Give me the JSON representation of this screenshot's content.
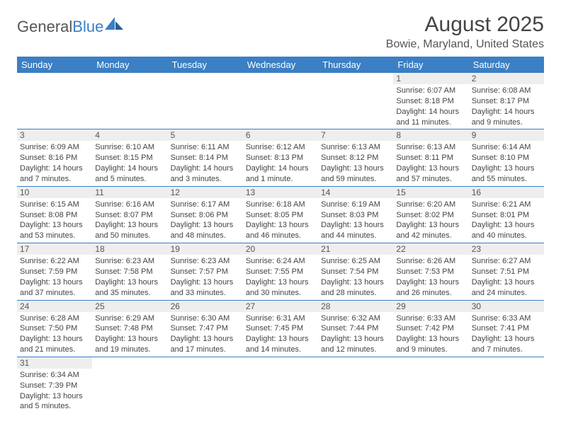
{
  "logo": {
    "text1": "General",
    "text2": "Blue"
  },
  "title": "August 2025",
  "location": "Bowie, Maryland, United States",
  "colors": {
    "header_bg": "#3b7fc4",
    "header_text": "#ffffff",
    "daynum_bg": "#eeeeee",
    "row_border": "#3b7fc4",
    "body_text": "#444444"
  },
  "weekdays": [
    "Sunday",
    "Monday",
    "Tuesday",
    "Wednesday",
    "Thursday",
    "Friday",
    "Saturday"
  ],
  "weeks": [
    [
      null,
      null,
      null,
      null,
      null,
      {
        "n": "1",
        "sr": "Sunrise: 6:07 AM",
        "ss": "Sunset: 8:18 PM",
        "dl": "Daylight: 14 hours and 11 minutes."
      },
      {
        "n": "2",
        "sr": "Sunrise: 6:08 AM",
        "ss": "Sunset: 8:17 PM",
        "dl": "Daylight: 14 hours and 9 minutes."
      }
    ],
    [
      {
        "n": "3",
        "sr": "Sunrise: 6:09 AM",
        "ss": "Sunset: 8:16 PM",
        "dl": "Daylight: 14 hours and 7 minutes."
      },
      {
        "n": "4",
        "sr": "Sunrise: 6:10 AM",
        "ss": "Sunset: 8:15 PM",
        "dl": "Daylight: 14 hours and 5 minutes."
      },
      {
        "n": "5",
        "sr": "Sunrise: 6:11 AM",
        "ss": "Sunset: 8:14 PM",
        "dl": "Daylight: 14 hours and 3 minutes."
      },
      {
        "n": "6",
        "sr": "Sunrise: 6:12 AM",
        "ss": "Sunset: 8:13 PM",
        "dl": "Daylight: 14 hours and 1 minute."
      },
      {
        "n": "7",
        "sr": "Sunrise: 6:13 AM",
        "ss": "Sunset: 8:12 PM",
        "dl": "Daylight: 13 hours and 59 minutes."
      },
      {
        "n": "8",
        "sr": "Sunrise: 6:13 AM",
        "ss": "Sunset: 8:11 PM",
        "dl": "Daylight: 13 hours and 57 minutes."
      },
      {
        "n": "9",
        "sr": "Sunrise: 6:14 AM",
        "ss": "Sunset: 8:10 PM",
        "dl": "Daylight: 13 hours and 55 minutes."
      }
    ],
    [
      {
        "n": "10",
        "sr": "Sunrise: 6:15 AM",
        "ss": "Sunset: 8:08 PM",
        "dl": "Daylight: 13 hours and 53 minutes."
      },
      {
        "n": "11",
        "sr": "Sunrise: 6:16 AM",
        "ss": "Sunset: 8:07 PM",
        "dl": "Daylight: 13 hours and 50 minutes."
      },
      {
        "n": "12",
        "sr": "Sunrise: 6:17 AM",
        "ss": "Sunset: 8:06 PM",
        "dl": "Daylight: 13 hours and 48 minutes."
      },
      {
        "n": "13",
        "sr": "Sunrise: 6:18 AM",
        "ss": "Sunset: 8:05 PM",
        "dl": "Daylight: 13 hours and 46 minutes."
      },
      {
        "n": "14",
        "sr": "Sunrise: 6:19 AM",
        "ss": "Sunset: 8:03 PM",
        "dl": "Daylight: 13 hours and 44 minutes."
      },
      {
        "n": "15",
        "sr": "Sunrise: 6:20 AM",
        "ss": "Sunset: 8:02 PM",
        "dl": "Daylight: 13 hours and 42 minutes."
      },
      {
        "n": "16",
        "sr": "Sunrise: 6:21 AM",
        "ss": "Sunset: 8:01 PM",
        "dl": "Daylight: 13 hours and 40 minutes."
      }
    ],
    [
      {
        "n": "17",
        "sr": "Sunrise: 6:22 AM",
        "ss": "Sunset: 7:59 PM",
        "dl": "Daylight: 13 hours and 37 minutes."
      },
      {
        "n": "18",
        "sr": "Sunrise: 6:23 AM",
        "ss": "Sunset: 7:58 PM",
        "dl": "Daylight: 13 hours and 35 minutes."
      },
      {
        "n": "19",
        "sr": "Sunrise: 6:23 AM",
        "ss": "Sunset: 7:57 PM",
        "dl": "Daylight: 13 hours and 33 minutes."
      },
      {
        "n": "20",
        "sr": "Sunrise: 6:24 AM",
        "ss": "Sunset: 7:55 PM",
        "dl": "Daylight: 13 hours and 30 minutes."
      },
      {
        "n": "21",
        "sr": "Sunrise: 6:25 AM",
        "ss": "Sunset: 7:54 PM",
        "dl": "Daylight: 13 hours and 28 minutes."
      },
      {
        "n": "22",
        "sr": "Sunrise: 6:26 AM",
        "ss": "Sunset: 7:53 PM",
        "dl": "Daylight: 13 hours and 26 minutes."
      },
      {
        "n": "23",
        "sr": "Sunrise: 6:27 AM",
        "ss": "Sunset: 7:51 PM",
        "dl": "Daylight: 13 hours and 24 minutes."
      }
    ],
    [
      {
        "n": "24",
        "sr": "Sunrise: 6:28 AM",
        "ss": "Sunset: 7:50 PM",
        "dl": "Daylight: 13 hours and 21 minutes."
      },
      {
        "n": "25",
        "sr": "Sunrise: 6:29 AM",
        "ss": "Sunset: 7:48 PM",
        "dl": "Daylight: 13 hours and 19 minutes."
      },
      {
        "n": "26",
        "sr": "Sunrise: 6:30 AM",
        "ss": "Sunset: 7:47 PM",
        "dl": "Daylight: 13 hours and 17 minutes."
      },
      {
        "n": "27",
        "sr": "Sunrise: 6:31 AM",
        "ss": "Sunset: 7:45 PM",
        "dl": "Daylight: 13 hours and 14 minutes."
      },
      {
        "n": "28",
        "sr": "Sunrise: 6:32 AM",
        "ss": "Sunset: 7:44 PM",
        "dl": "Daylight: 13 hours and 12 minutes."
      },
      {
        "n": "29",
        "sr": "Sunrise: 6:33 AM",
        "ss": "Sunset: 7:42 PM",
        "dl": "Daylight: 13 hours and 9 minutes."
      },
      {
        "n": "30",
        "sr": "Sunrise: 6:33 AM",
        "ss": "Sunset: 7:41 PM",
        "dl": "Daylight: 13 hours and 7 minutes."
      }
    ],
    [
      {
        "n": "31",
        "sr": "Sunrise: 6:34 AM",
        "ss": "Sunset: 7:39 PM",
        "dl": "Daylight: 13 hours and 5 minutes."
      },
      null,
      null,
      null,
      null,
      null,
      null
    ]
  ]
}
